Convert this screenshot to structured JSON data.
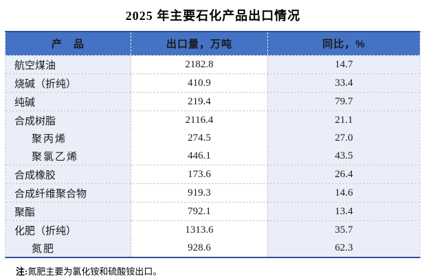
{
  "title": "2025 年主要石化产品出口情况",
  "colors": {
    "header_bg": "#4472C4",
    "band_bg": "#E9EEF8",
    "frame_border": "#2B4F93",
    "divider": "#C6C6C6"
  },
  "table": {
    "headers": [
      "产　品",
      "出口量，万吨",
      "同比，%"
    ],
    "rows": [
      {
        "product": "航空煤油",
        "volume": "2182.8",
        "yoy": "14.7"
      },
      {
        "product": "烧碱（折纯）",
        "volume": "410.9",
        "yoy": "33.4"
      },
      {
        "product": "纯碱",
        "volume": "219.4",
        "yoy": "79.7"
      },
      {
        "product": "合成树脂",
        "volume": "2116.4",
        "yoy": "21.1"
      },
      {
        "product": "聚丙烯",
        "volume": "274.5",
        "yoy": "27.0"
      },
      {
        "product": "聚氯乙烯",
        "volume": "446.1",
        "yoy": "43.5"
      },
      {
        "product": "合成橡胶",
        "volume": "173.6",
        "yoy": "26.4"
      },
      {
        "product": "合成纤维聚合物",
        "volume": "919.3",
        "yoy": "14.6"
      },
      {
        "product": "聚酯",
        "volume": "792.1",
        "yoy": "13.4"
      },
      {
        "product": "化肥（折纯）",
        "volume": "1313.6",
        "yoy": "35.7"
      },
      {
        "product": "氮肥",
        "volume": "928.6",
        "yoy": "62.3"
      }
    ]
  },
  "note": {
    "label": "注:",
    "text": "氮肥主要为氯化铵和硫酸铵出口。"
  },
  "chart_data": {
    "type": "table",
    "title": "2025 年主要石化产品出口情况",
    "columns": [
      "产　品",
      "出口量，万吨",
      "同比，%"
    ],
    "rows": [
      {
        "product": "航空煤油",
        "export_volume_wan_t": 2182.8,
        "yoy_pct": 14.7,
        "indent": 0
      },
      {
        "product": "烧碱（折纯）",
        "export_volume_wan_t": 410.9,
        "yoy_pct": 33.4,
        "indent": 0
      },
      {
        "product": "纯碱",
        "export_volume_wan_t": 219.4,
        "yoy_pct": 79.7,
        "indent": 0
      },
      {
        "product": "合成树脂",
        "export_volume_wan_t": 2116.4,
        "yoy_pct": 21.1,
        "indent": 0
      },
      {
        "product": "聚丙烯",
        "export_volume_wan_t": 274.5,
        "yoy_pct": 27.0,
        "indent": 1
      },
      {
        "product": "聚氯乙烯",
        "export_volume_wan_t": 446.1,
        "yoy_pct": 43.5,
        "indent": 1
      },
      {
        "product": "合成橡胶",
        "export_volume_wan_t": 173.6,
        "yoy_pct": 26.4,
        "indent": 0
      },
      {
        "product": "合成纤维聚合物",
        "export_volume_wan_t": 919.3,
        "yoy_pct": 14.6,
        "indent": 0
      },
      {
        "product": "聚酯",
        "export_volume_wan_t": 792.1,
        "yoy_pct": 13.4,
        "indent": 0
      },
      {
        "product": "化肥（折纯）",
        "export_volume_wan_t": 1313.6,
        "yoy_pct": 35.7,
        "indent": 0
      },
      {
        "product": "氮肥",
        "export_volume_wan_t": 928.6,
        "yoy_pct": 62.3,
        "indent": 1
      }
    ],
    "note": "注:氮肥主要为氯化铵和硫酸铵出口。",
    "layout": {
      "grid": "dashed-internal",
      "header_style": "blue-fill-white-text",
      "banded_columns": [
        0,
        2
      ]
    }
  }
}
